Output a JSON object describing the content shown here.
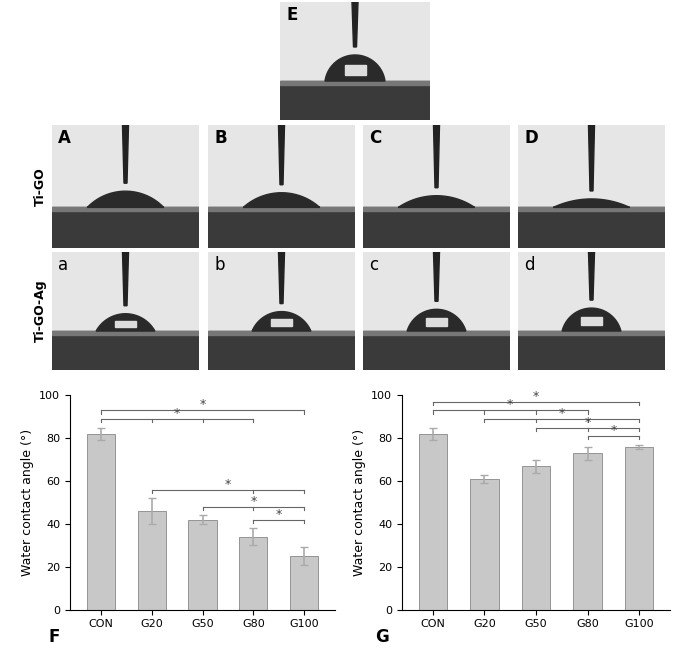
{
  "images": {
    "top": {
      "label": "E"
    },
    "rows": [
      {
        "name": "Ti-GO",
        "panels": [
          "A",
          "B",
          "C",
          "D"
        ]
      },
      {
        "name": "Ti-GO-Ag",
        "panels": [
          "a",
          "b",
          "c",
          "d"
        ]
      }
    ]
  },
  "chart_data": [
    {
      "type": "bar",
      "panel_label": "F",
      "categories": [
        "CON",
        "G20",
        "G50",
        "G80",
        "G100"
      ],
      "values": [
        82,
        46,
        42,
        34,
        25
      ],
      "errors": [
        3,
        6,
        2,
        4,
        4
      ],
      "color": "#c8c8c8",
      "ylabel": "Water contact angle (°)",
      "ylim": [
        0,
        100
      ],
      "yticks": [
        0,
        20,
        40,
        60,
        80,
        100
      ],
      "significance": [
        {
          "from": "CON",
          "to": [
            "G100"
          ],
          "label": "*"
        },
        {
          "from": "CON",
          "to": [
            "G20",
            "G50",
            "G80"
          ],
          "label": "*"
        },
        {
          "from": "G20",
          "to": [
            "G80",
            "G100"
          ],
          "label": "*"
        },
        {
          "from": "G50",
          "to": [
            "G80",
            "G100"
          ],
          "label": "*"
        },
        {
          "from": "G80",
          "to": [
            "G100"
          ],
          "label": "*"
        }
      ]
    },
    {
      "type": "bar",
      "panel_label": "G",
      "categories": [
        "CON",
        "G20",
        "G50",
        "G80",
        "G100"
      ],
      "values": [
        82,
        61,
        67,
        73,
        76
      ],
      "errors": [
        3,
        2,
        3,
        3,
        1
      ],
      "color": "#c8c8c8",
      "ylabel": "Water contact angle (°)",
      "ylim": [
        0,
        100
      ],
      "yticks": [
        0,
        20,
        40,
        60,
        80,
        100
      ],
      "significance": [
        {
          "from": "CON",
          "to": [
            "G100"
          ],
          "label": "*"
        },
        {
          "from": "CON",
          "to": [
            "G20",
            "G50",
            "G80"
          ],
          "label": "*"
        },
        {
          "from": "G20",
          "to": [
            "G50",
            "G80",
            "G100"
          ],
          "label": "*"
        },
        {
          "from": "G50",
          "to": [
            "G80",
            "G100"
          ],
          "label": "*"
        },
        {
          "from": "G80",
          "to": [
            "G100"
          ],
          "label": "*"
        }
      ]
    }
  ]
}
